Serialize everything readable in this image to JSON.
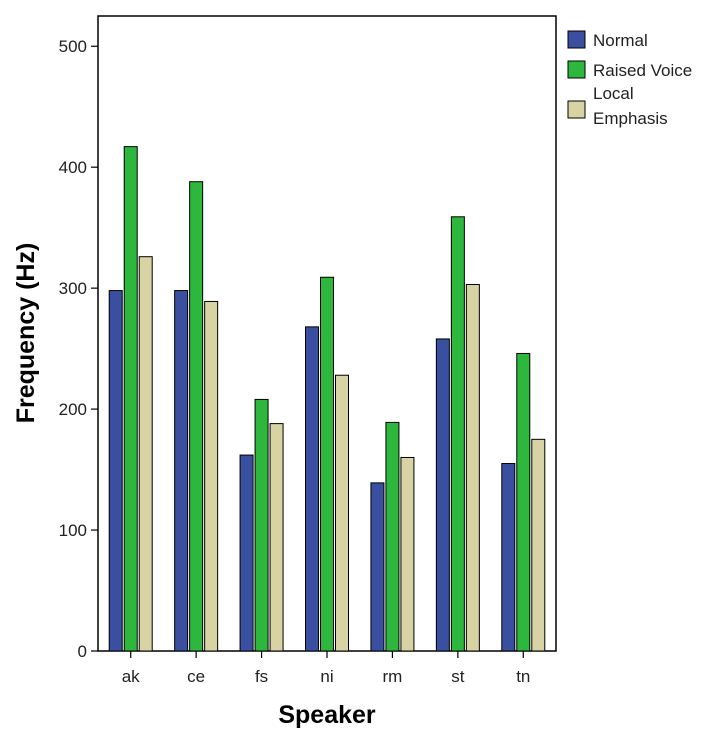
{
  "chart_data": {
    "type": "bar",
    "xlabel": "Speaker",
    "ylabel": "Frequency (Hz)",
    "ylim": [
      0,
      525
    ],
    "yticks": [
      0,
      100,
      200,
      300,
      400,
      500
    ],
    "categories": [
      "ak",
      "ce",
      "fs",
      "ni",
      "rm",
      "st",
      "tn"
    ],
    "series": [
      {
        "name": "Normal",
        "color": "#3a4f9f",
        "values": [
          298,
          298,
          162,
          268,
          139,
          258,
          155
        ]
      },
      {
        "name": "Raised Voice",
        "color": "#2db83d",
        "values": [
          417,
          388,
          208,
          309,
          189,
          359,
          246
        ]
      },
      {
        "name": "Local\nEmphasis",
        "color": "#d8d3a3",
        "values": [
          326,
          289,
          188,
          228,
          160,
          303,
          175
        ]
      }
    ],
    "legend_position": "right",
    "grid": false
  }
}
